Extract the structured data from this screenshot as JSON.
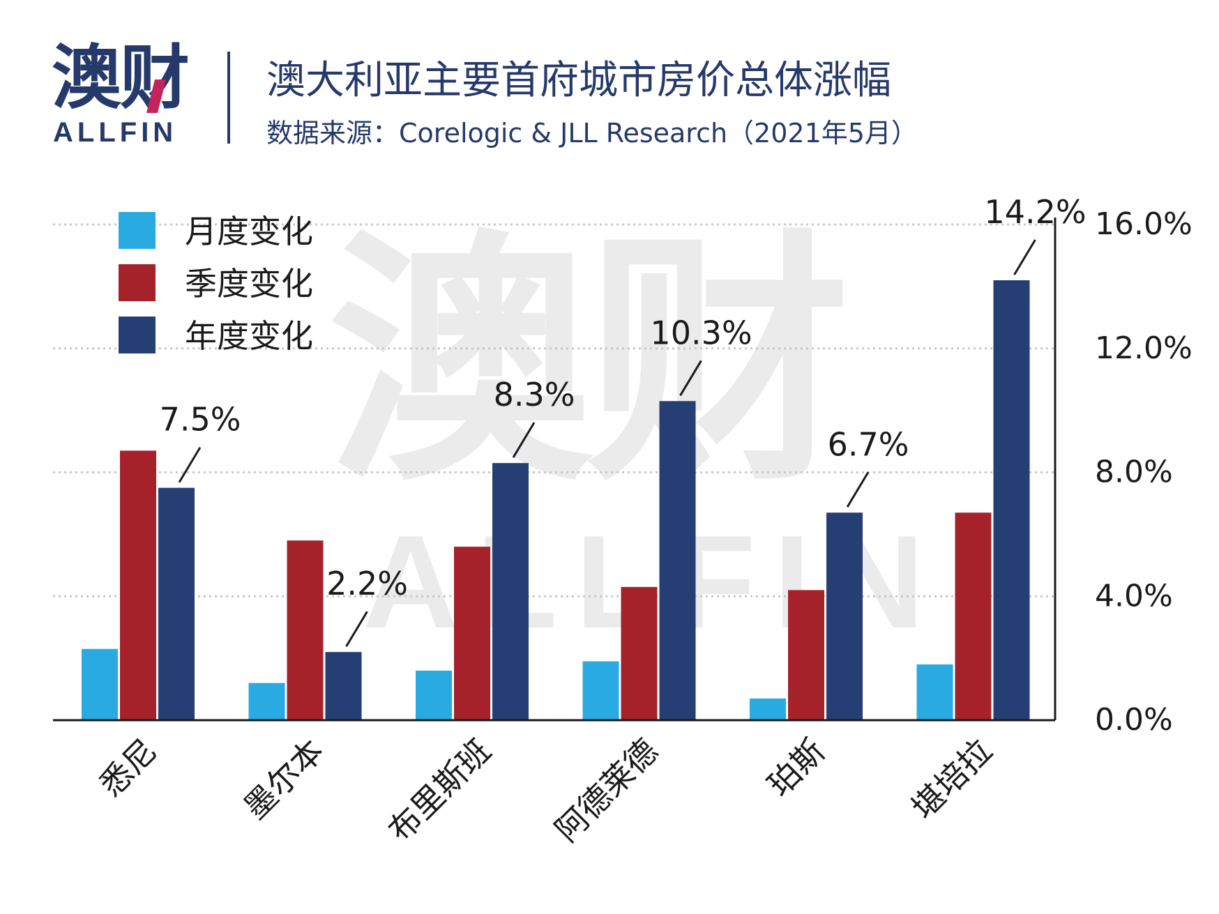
{
  "header": {
    "logo_cn": "澳财",
    "logo_en": "ALLFIN",
    "title": "澳大利亚主要首府城市房价总体涨幅",
    "subtitle": "数据来源：Corelogic & JLL Research（2021年5月）"
  },
  "watermark": {
    "cn": "澳财",
    "en": "ALLFIN"
  },
  "colors": {
    "monthly": "#29abe2",
    "quarterly": "#a5222b",
    "annual": "#253f75",
    "brand": "#25396a",
    "accent": "#c4245c"
  },
  "chart_data": {
    "type": "bar",
    "categories": [
      "悉尼",
      "墨尔本",
      "布里斯班",
      "阿德莱德",
      "珀斯",
      "堪培拉"
    ],
    "series": [
      {
        "name": "月度变化",
        "values": [
          2.3,
          1.2,
          1.6,
          1.9,
          0.7,
          1.8
        ]
      },
      {
        "name": "季度变化",
        "values": [
          8.7,
          5.8,
          5.6,
          4.3,
          4.2,
          6.7
        ]
      },
      {
        "name": "年度变化",
        "values": [
          7.5,
          2.2,
          8.3,
          10.3,
          6.7,
          14.2
        ]
      }
    ],
    "annotations": [
      "7.5%",
      "2.2%",
      "8.3%",
      "10.3%",
      "6.7%",
      "14.2%"
    ],
    "yticks": [
      "0.0%",
      "4.0%",
      "8.0%",
      "12.0%",
      "16.0%"
    ],
    "ylim": [
      0,
      16
    ],
    "y_axis_position": "right",
    "grid": true,
    "legend_position": "top-left"
  }
}
